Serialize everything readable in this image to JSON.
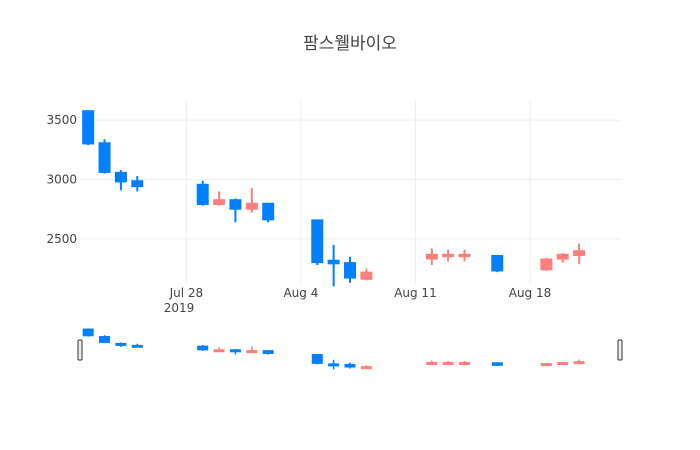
{
  "chart_data": {
    "type": "candlestick",
    "title": "팜스웰바이오",
    "x_tick_labels": [
      "Jul 28",
      "Aug 4",
      "Aug 11",
      "Aug 18"
    ],
    "x_tick_dates": [
      "2019-07-28",
      "2019-08-04",
      "2019-08-11",
      "2019-08-18"
    ],
    "x_year_label": "2019",
    "y_ticks": [
      2500,
      3000,
      3500
    ],
    "y_range": [
      2120,
      3670
    ],
    "x_range": [
      "2019-07-22",
      "2019-08-23"
    ],
    "grid": true,
    "rangeslider": true,
    "colors": {
      "increasing": "#FF7F7F",
      "decreasing": "#0080FF"
    },
    "candles": [
      {
        "date": "2019-07-22",
        "open": 3580,
        "high": 3580,
        "low": 3290,
        "close": 3300
      },
      {
        "date": "2019-07-23",
        "open": 3310,
        "high": 3340,
        "low": 3050,
        "close": 3060
      },
      {
        "date": "2019-07-24",
        "open": 3060,
        "high": 3080,
        "low": 2910,
        "close": 2980
      },
      {
        "date": "2019-07-25",
        "open": 2990,
        "high": 3030,
        "low": 2900,
        "close": 2940
      },
      {
        "date": "2019-07-29",
        "open": 2960,
        "high": 2990,
        "low": 2780,
        "close": 2790
      },
      {
        "date": "2019-07-30",
        "open": 2790,
        "high": 2900,
        "low": 2780,
        "close": 2830
      },
      {
        "date": "2019-07-31",
        "open": 2830,
        "high": 2840,
        "low": 2640,
        "close": 2750
      },
      {
        "date": "2019-08-01",
        "open": 2750,
        "high": 2930,
        "low": 2720,
        "close": 2800
      },
      {
        "date": "2019-08-02",
        "open": 2800,
        "high": 2800,
        "low": 2640,
        "close": 2660
      },
      {
        "date": "2019-08-05",
        "open": 2660,
        "high": 2660,
        "low": 2280,
        "close": 2300
      },
      {
        "date": "2019-08-06",
        "open": 2320,
        "high": 2450,
        "low": 2100,
        "close": 2290
      },
      {
        "date": "2019-08-07",
        "open": 2300,
        "high": 2350,
        "low": 2130,
        "close": 2170
      },
      {
        "date": "2019-08-08",
        "open": 2160,
        "high": 2250,
        "low": 2150,
        "close": 2220
      },
      {
        "date": "2019-08-12",
        "open": 2330,
        "high": 2420,
        "low": 2280,
        "close": 2370
      },
      {
        "date": "2019-08-13",
        "open": 2350,
        "high": 2410,
        "low": 2310,
        "close": 2370
      },
      {
        "date": "2019-08-14",
        "open": 2350,
        "high": 2410,
        "low": 2310,
        "close": 2370
      },
      {
        "date": "2019-08-16",
        "open": 2360,
        "high": 2360,
        "low": 2220,
        "close": 2230
      },
      {
        "date": "2019-08-19",
        "open": 2240,
        "high": 2340,
        "low": 2230,
        "close": 2330
      },
      {
        "date": "2019-08-20",
        "open": 2330,
        "high": 2380,
        "low": 2300,
        "close": 2370
      },
      {
        "date": "2019-08-21",
        "open": 2360,
        "high": 2460,
        "low": 2290,
        "close": 2400
      }
    ]
  }
}
